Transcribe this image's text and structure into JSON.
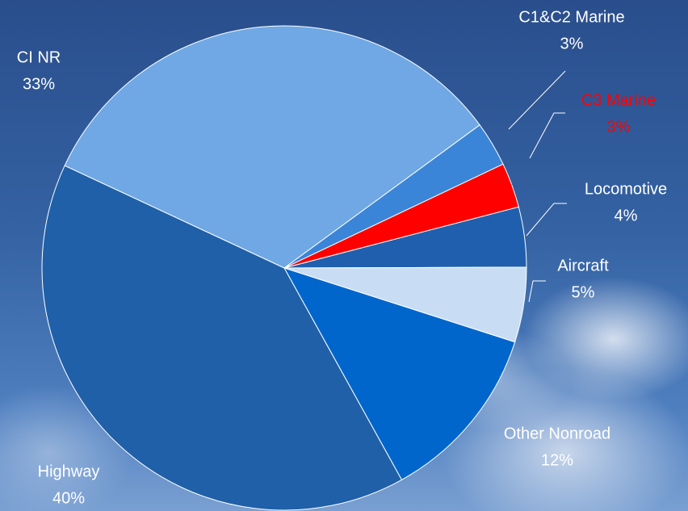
{
  "chart_data": {
    "type": "pie",
    "categories": [
      "CI NR",
      "C1&C2 Marine",
      "C3 Marine",
      "Locomotive",
      "Aircraft",
      "Other Nonroad",
      "Highway"
    ],
    "values": [
      33,
      3,
      3,
      4,
      5,
      12,
      40
    ],
    "value_labels": [
      "33%",
      "3%",
      "3%",
      "4%",
      "5%",
      "12%",
      "40%"
    ],
    "colors": [
      "#6fa8e4",
      "#3a85d8",
      "#ff0000",
      "#1f5fae",
      "#c8dcf4",
      "#0066cc",
      "#2060a8"
    ],
    "label_colors": [
      "#ffffff",
      "#ffffff",
      "#ff0000",
      "#ffffff",
      "#ffffff",
      "#ffffff",
      "#ffffff"
    ]
  }
}
